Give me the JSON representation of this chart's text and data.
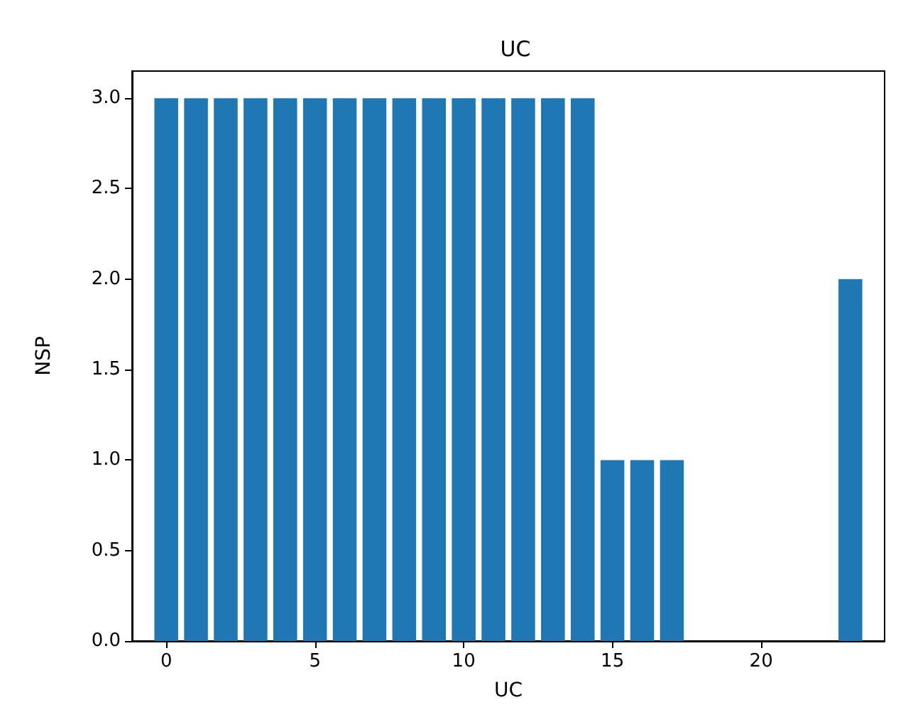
{
  "chart_data": {
    "type": "bar",
    "title": "UC",
    "xlabel": "UC",
    "ylabel": "NSP",
    "x": [
      0,
      1,
      2,
      3,
      4,
      5,
      6,
      7,
      8,
      9,
      10,
      11,
      12,
      13,
      14,
      15,
      16,
      17,
      23
    ],
    "values": [
      3,
      3,
      3,
      3,
      3,
      3,
      3,
      3,
      3,
      3,
      3,
      3,
      3,
      3,
      3,
      1,
      1,
      1,
      2
    ],
    "color": "#1f77b4",
    "xlim": [
      -1.15,
      24.15
    ],
    "xticks": [
      0,
      5,
      10,
      15,
      20
    ],
    "ylim": [
      0,
      3.15
    ],
    "yticks": [
      {
        "value": 0,
        "label": "0.0"
      },
      {
        "value": 0.5,
        "label": "0.5"
      },
      {
        "value": 1,
        "label": "1.0"
      },
      {
        "value": 1.5,
        "label": "1.5"
      },
      {
        "value": 2,
        "label": "2.0"
      },
      {
        "value": 2.5,
        "label": "2.5"
      },
      {
        "value": 3,
        "label": "3.0"
      }
    ],
    "grid": false
  }
}
